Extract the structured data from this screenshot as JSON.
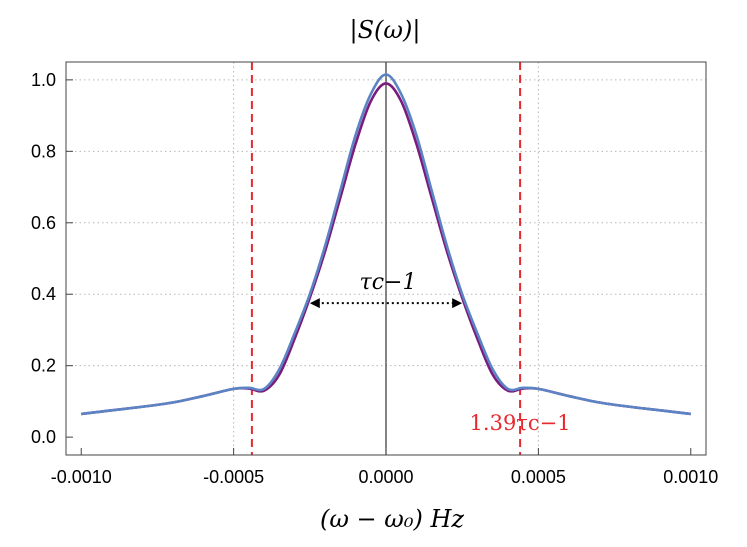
{
  "chart_data": {
    "type": "line",
    "title": "|S(ω)|",
    "xlabel": "(ω − ω₀) Hz",
    "ylabel": "",
    "xlim": [
      -0.00105,
      0.00105
    ],
    "ylim": [
      -0.05,
      1.05
    ],
    "x_ticks": [
      -0.001,
      -0.0005,
      0,
      0.0005,
      0.001
    ],
    "x_tick_labels": [
      "-0.0010",
      "-0.0005",
      "0.0000",
      "0.0005",
      "0.0010"
    ],
    "y_ticks": [
      0,
      0.2,
      0.4,
      0.6,
      0.8,
      1.0
    ],
    "y_tick_labels": [
      "0.0",
      "0.2",
      "0.4",
      "0.6",
      "0.8",
      "1.0"
    ],
    "grid": "dotted at x = ±0.0005 and y = 0.2, 0.4, 0.6, 0.8, 1.0",
    "series": [
      {
        "color": "#7b1b7e",
        "x": [
          -0.001,
          -0.0009,
          -0.0008,
          -0.0007,
          -0.0006,
          -0.0005,
          -0.00045,
          -0.0004,
          -0.00035,
          -0.0003,
          -0.00025,
          -0.0002,
          -0.00015,
          -0.0001,
          -5e-05,
          0,
          5e-05,
          0.0001,
          0.00015,
          0.0002,
          0.00025,
          0.0003,
          0.00035,
          0.0004,
          0.00045,
          0.0005,
          0.0006,
          0.0007,
          0.0008,
          0.0009,
          0.001
        ],
        "y": [
          0.065,
          0.075,
          0.085,
          0.097,
          0.115,
          0.135,
          0.136,
          0.13,
          0.175,
          0.275,
          0.39,
          0.52,
          0.67,
          0.82,
          0.94,
          0.99,
          0.94,
          0.82,
          0.67,
          0.52,
          0.39,
          0.275,
          0.175,
          0.13,
          0.136,
          0.135,
          0.115,
          0.097,
          0.085,
          0.075,
          0.065
        ]
      },
      {
        "color": "#5b84c4",
        "x": [
          -0.001,
          -0.0009,
          -0.0008,
          -0.0007,
          -0.0006,
          -0.0005,
          -0.00045,
          -0.0004,
          -0.00035,
          -0.0003,
          -0.00025,
          -0.0002,
          -0.00015,
          -0.0001,
          -5e-05,
          0,
          5e-05,
          0.0001,
          0.00015,
          0.0002,
          0.00025,
          0.0003,
          0.00035,
          0.0004,
          0.00045,
          0.0005,
          0.0006,
          0.0007,
          0.0008,
          0.0009,
          0.001
        ],
        "y": [
          0.065,
          0.075,
          0.085,
          0.097,
          0.115,
          0.135,
          0.138,
          0.135,
          0.19,
          0.29,
          0.4,
          0.535,
          0.69,
          0.845,
          0.96,
          1.015,
          0.96,
          0.845,
          0.69,
          0.535,
          0.4,
          0.29,
          0.19,
          0.135,
          0.138,
          0.135,
          0.115,
          0.097,
          0.085,
          0.075,
          0.065
        ]
      }
    ],
    "vertical_lines": [
      {
        "x": -0.00044,
        "color": "#e8282f",
        "style": "dashed"
      },
      {
        "x": 0.00044,
        "color": "#e8282f",
        "style": "dashed"
      },
      {
        "x": 0,
        "color": "#333333",
        "style": "solid"
      }
    ],
    "annotations": [
      {
        "kind": "double-arrow",
        "x1": -0.00025,
        "x2": 0.00025,
        "y": 0.375,
        "label": "τc−1",
        "color": "#000000"
      },
      {
        "kind": "text",
        "text": "1.39τc−1",
        "x": 0.00044,
        "y": 0.02,
        "color": "#e8282f"
      }
    ]
  }
}
